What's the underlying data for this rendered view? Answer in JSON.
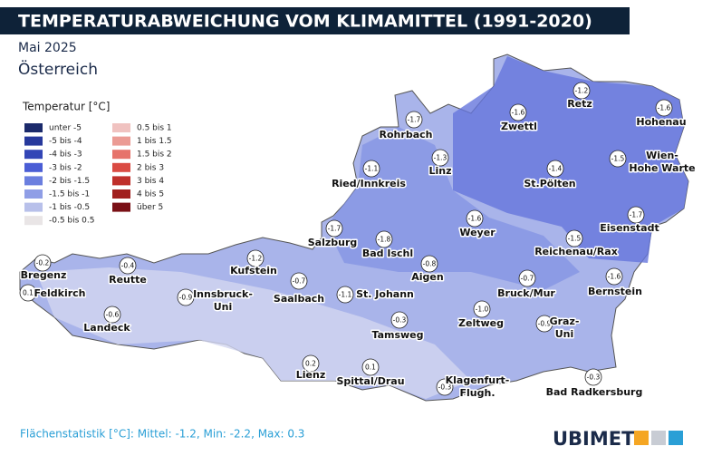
{
  "header": {
    "title": "TEMPERATURABWEICHUNG VOM KLIMAMITTEL (1991-2020)",
    "subtitle": "Mai 2025",
    "region": "Österreich"
  },
  "legend": {
    "title": "Temperatur [°C]",
    "items": [
      {
        "label": "unter -5",
        "color": "#1b2a6b"
      },
      {
        "label": "-5 bis -4",
        "color": "#27399c"
      },
      {
        "label": "-4 bis -3",
        "color": "#3346b6"
      },
      {
        "label": "-3 bis -2",
        "color": "#4a5dd5"
      },
      {
        "label": "-2 bis -1.5",
        "color": "#6b7fdf"
      },
      {
        "label": "-1.5 bis -1",
        "color": "#8f9ee6"
      },
      {
        "label": "-1 bis -0.5",
        "color": "#b8c0ea"
      },
      {
        "label": "-0.5 bis 0.5",
        "color": "#e9e5e6"
      },
      {
        "label": "0.5 bis 1",
        "color": "#f0c2c0"
      },
      {
        "label": "1 bis 1.5",
        "color": "#eb9b94"
      },
      {
        "label": "1.5 bis 2",
        "color": "#e6736b"
      },
      {
        "label": "2 bis 3",
        "color": "#da4b43"
      },
      {
        "label": "3 bis 4",
        "color": "#bf302b"
      },
      {
        "label": "4 bis 5",
        "color": "#a1201e"
      },
      {
        "label": "über 5",
        "color": "#7a1016"
      }
    ]
  },
  "stations": [
    {
      "name": [
        "Bregenz"
      ],
      "value": "-0.2"
    },
    {
      "name": [
        "Feldkirch"
      ],
      "value": "0.1"
    },
    {
      "name": [
        "Reutte"
      ],
      "value": "-0.4"
    },
    {
      "name": [
        "Landeck"
      ],
      "value": "-0.6"
    },
    {
      "name": [
        "Kufstein"
      ],
      "value": "-1.2"
    },
    {
      "name": [
        "Innsbruck-",
        "Uni"
      ],
      "value": "-0.9"
    },
    {
      "name": [
        "Saalbach"
      ],
      "value": "-0.7"
    },
    {
      "name": [
        "Salzburg"
      ],
      "value": "-1.7"
    },
    {
      "name": [
        "Bad Ischl"
      ],
      "value": "-1.8"
    },
    {
      "name": [
        "St. Johann"
      ],
      "value": "-1.1"
    },
    {
      "name": [
        "Aigen"
      ],
      "value": "-0.8"
    },
    {
      "name": [
        "Rohrbach"
      ],
      "value": "-1.7"
    },
    {
      "name": [
        "Linz"
      ],
      "value": "-1.3"
    },
    {
      "name": [
        "Ried/Innkreis"
      ],
      "value": "-1.1"
    },
    {
      "name": [
        "Weyer"
      ],
      "value": "-1.6"
    },
    {
      "name": [
        "Zwettl"
      ],
      "value": "-1.6"
    },
    {
      "name": [
        "Retz"
      ],
      "value": "-1.2"
    },
    {
      "name": [
        "Hohenau"
      ],
      "value": "-1.6"
    },
    {
      "name": [
        "Wien-",
        "Hohe Warte"
      ],
      "value": "-1.5"
    },
    {
      "name": [
        "St.Pölten"
      ],
      "value": "-1.4"
    },
    {
      "name": [
        "Eisenstadt"
      ],
      "value": "-1.7"
    },
    {
      "name": [
        "Reichenau/Rax"
      ],
      "value": "-1.5"
    },
    {
      "name": [
        "Bernstein"
      ],
      "value": "-1.6"
    },
    {
      "name": [
        "Bruck/Mur"
      ],
      "value": "-0.7"
    },
    {
      "name": [
        "Graz-",
        "Uni"
      ],
      "value": "-0.9"
    },
    {
      "name": [
        "Zeltweg"
      ],
      "value": "-1.0"
    },
    {
      "name": [
        "Tamsweg"
      ],
      "value": "-0.3"
    },
    {
      "name": [
        "Lienz"
      ],
      "value": "0.2"
    },
    {
      "name": [
        "Spittal/Drau"
      ],
      "value": "0.1"
    },
    {
      "name": [
        "Klagenfurt-",
        "Flugh."
      ],
      "value": "-0.3"
    },
    {
      "name": [
        "Bad Radkersburg"
      ],
      "value": "-0.3"
    }
  ],
  "footer": {
    "statistics": "Flächenstatistik [°C]: Mittel: -1.2, Min: -2.2, Max: 0.3",
    "logo": "UBIMET"
  }
}
